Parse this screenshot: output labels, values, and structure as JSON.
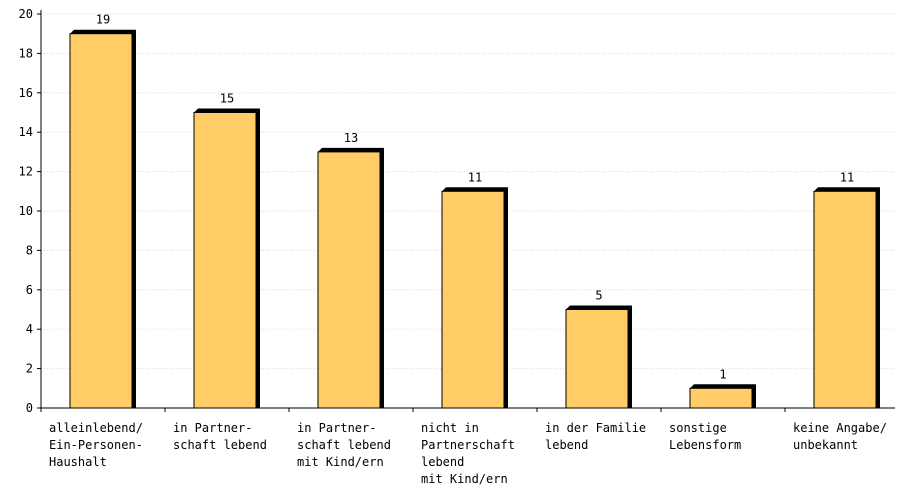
{
  "chart_data": {
    "type": "bar",
    "categories": [
      [
        "alleinlebend/",
        "Ein-Personen-",
        "Haushalt"
      ],
      [
        "in Partner-",
        "schaft lebend"
      ],
      [
        "in Partner-",
        "schaft lebend",
        "mit Kind/ern"
      ],
      [
        "nicht in",
        "Partnerschaft",
        "lebend",
        "mit Kind/ern"
      ],
      [
        "in der Familie",
        "lebend"
      ],
      [
        "sonstige",
        "Lebensform"
      ],
      [
        "keine Angabe/",
        "unbekannt"
      ]
    ],
    "values": [
      19,
      15,
      13,
      11,
      5,
      1,
      11
    ],
    "value_labels": [
      "19",
      "15",
      "13",
      "11",
      "5",
      "1",
      "11"
    ],
    "ylim": [
      0,
      20
    ],
    "y_ticks": [
      "0",
      "2",
      "4",
      "6",
      "8",
      "10",
      "12",
      "14",
      "16",
      "18",
      "20"
    ],
    "grid": true,
    "title": "",
    "xlabel": "",
    "ylabel": ""
  },
  "colors": {
    "bar_fill": "#FFCC66",
    "bar_edge": "#000000",
    "grid": "#d8d8d8",
    "axis": "#000000"
  }
}
